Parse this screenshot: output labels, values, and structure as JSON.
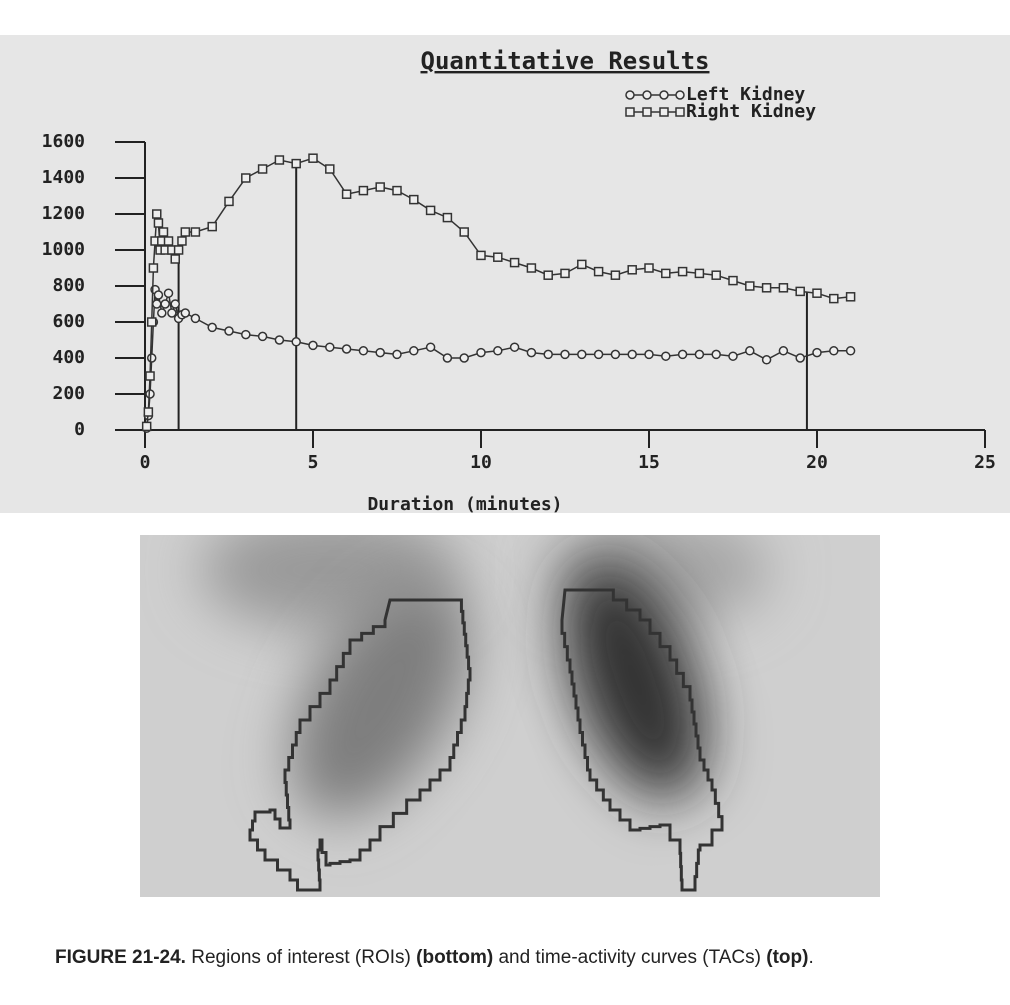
{
  "chart_data": {
    "type": "line",
    "title": "Quantitative Results",
    "x_label": "Duration (minutes)",
    "xlim": [
      0,
      25
    ],
    "xticks": [
      0,
      5,
      10,
      15,
      20,
      25
    ],
    "ylim": [
      0,
      1600
    ],
    "yticks": [
      0,
      200,
      400,
      600,
      800,
      1000,
      1200,
      1400,
      1600
    ],
    "vertical_lines": [
      1,
      4.5,
      19.7
    ],
    "series": [
      {
        "name": "Left Kidney",
        "marker": "circle",
        "color": "#333333",
        "x": [
          0.05,
          0.1,
          0.15,
          0.2,
          0.25,
          0.3,
          0.35,
          0.4,
          0.5,
          0.6,
          0.7,
          0.8,
          0.9,
          1.0,
          1.1,
          1.2,
          1.5,
          2.0,
          2.5,
          3.0,
          3.5,
          4.0,
          4.5,
          5.0,
          5.5,
          6.0,
          6.5,
          7.0,
          7.5,
          8.0,
          8.5,
          9.0,
          9.5,
          10.0,
          10.5,
          11.0,
          11.5,
          12.0,
          12.5,
          13.0,
          13.5,
          14.0,
          14.5,
          15.0,
          15.5,
          16.0,
          16.5,
          17.0,
          17.5,
          18.0,
          18.5,
          19.0,
          19.5,
          20.0,
          20.5,
          21.0
        ],
        "values": [
          10,
          80,
          200,
          400,
          600,
          780,
          700,
          750,
          650,
          700,
          760,
          650,
          700,
          620,
          640,
          650,
          620,
          570,
          550,
          530,
          520,
          500,
          490,
          470,
          460,
          450,
          440,
          430,
          420,
          440,
          460,
          400,
          400,
          430,
          440,
          460,
          430,
          420,
          420,
          420,
          420,
          420,
          420,
          420,
          410,
          420,
          420,
          420,
          410,
          440,
          390,
          440,
          400,
          430,
          440,
          440
        ]
      },
      {
        "name": "Right Kidney",
        "marker": "square",
        "color": "#333333",
        "x": [
          0.05,
          0.1,
          0.15,
          0.2,
          0.25,
          0.3,
          0.35,
          0.4,
          0.45,
          0.5,
          0.55,
          0.6,
          0.7,
          0.8,
          0.9,
          1.0,
          1.1,
          1.2,
          1.5,
          2.0,
          2.5,
          3.0,
          3.5,
          4.0,
          4.5,
          5.0,
          5.5,
          6.0,
          6.5,
          7.0,
          7.5,
          8.0,
          8.5,
          9.0,
          9.5,
          10.0,
          10.5,
          11.0,
          11.5,
          12.0,
          12.5,
          13.0,
          13.5,
          14.0,
          14.5,
          15.0,
          15.5,
          16.0,
          16.5,
          17.0,
          17.5,
          18.0,
          18.5,
          19.0,
          19.5,
          20.0,
          20.5,
          21.0
        ],
        "values": [
          20,
          100,
          300,
          600,
          900,
          1050,
          1200,
          1150,
          1000,
          1050,
          1100,
          1000,
          1050,
          1000,
          950,
          1000,
          1050,
          1100,
          1100,
          1130,
          1270,
          1400,
          1450,
          1500,
          1480,
          1510,
          1450,
          1310,
          1330,
          1350,
          1330,
          1280,
          1220,
          1180,
          1100,
          970,
          960,
          930,
          900,
          860,
          870,
          920,
          880,
          860,
          890,
          900,
          870,
          880,
          870,
          860,
          830,
          800,
          790,
          790,
          770,
          760,
          730,
          740
        ]
      }
    ]
  },
  "caption": {
    "label": "FIGURE 21-24.",
    "parts": [
      "Regions of interest (ROIs)",
      "(bottom)",
      "and time-activity curves (TACs)",
      "(top)",
      "."
    ]
  }
}
